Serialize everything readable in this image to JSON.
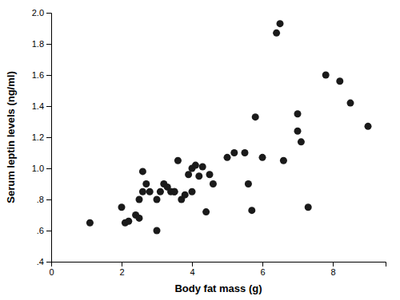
{
  "chart_data": {
    "type": "scatter",
    "x": [
      1.1,
      2.0,
      2.1,
      2.2,
      2.4,
      2.5,
      2.5,
      2.6,
      2.6,
      2.7,
      2.8,
      3.0,
      3.0,
      3.1,
      3.2,
      3.3,
      3.4,
      3.5,
      3.5,
      3.6,
      3.7,
      3.8,
      3.9,
      4.0,
      4.0,
      4.1,
      4.2,
      4.3,
      4.4,
      4.5,
      4.6,
      5.0,
      5.2,
      5.5,
      5.6,
      5.7,
      5.8,
      6.0,
      6.4,
      6.5,
      6.6,
      7.0,
      7.0,
      7.1,
      7.3,
      7.8,
      8.2,
      8.5,
      9.0
    ],
    "y": [
      0.65,
      0.75,
      0.65,
      0.66,
      0.7,
      0.68,
      0.8,
      0.98,
      0.85,
      0.9,
      0.85,
      0.6,
      0.8,
      0.85,
      0.9,
      0.88,
      0.85,
      0.85,
      0.85,
      1.05,
      0.8,
      0.83,
      0.96,
      1.0,
      0.85,
      1.02,
      0.95,
      1.01,
      0.72,
      0.96,
      0.9,
      1.07,
      1.1,
      1.1,
      0.9,
      0.73,
      1.33,
      1.07,
      1.87,
      1.93,
      1.05,
      1.24,
      1.35,
      1.17,
      0.75,
      1.6,
      1.56,
      1.42,
      1.27
    ],
    "xlabel": "Body fat mass (g)",
    "ylabel": "Serum leptin levels (ng/ml)",
    "xlim": [
      0,
      9.5
    ],
    "ylim": [
      0.4,
      2.0
    ],
    "xticks": [
      0,
      2,
      4,
      6,
      8
    ],
    "yticks": [
      {
        "value": 0.4,
        "label": ".4"
      },
      {
        "value": 0.6,
        "label": ".6"
      },
      {
        "value": 0.8,
        "label": ".8"
      },
      {
        "value": 1.0,
        "label": "1.0"
      },
      1.2,
      1.4,
      1.6,
      1.8,
      {
        "value": 2.0,
        "label": "2.0"
      }
    ],
    "color": "#1a1a1a"
  }
}
